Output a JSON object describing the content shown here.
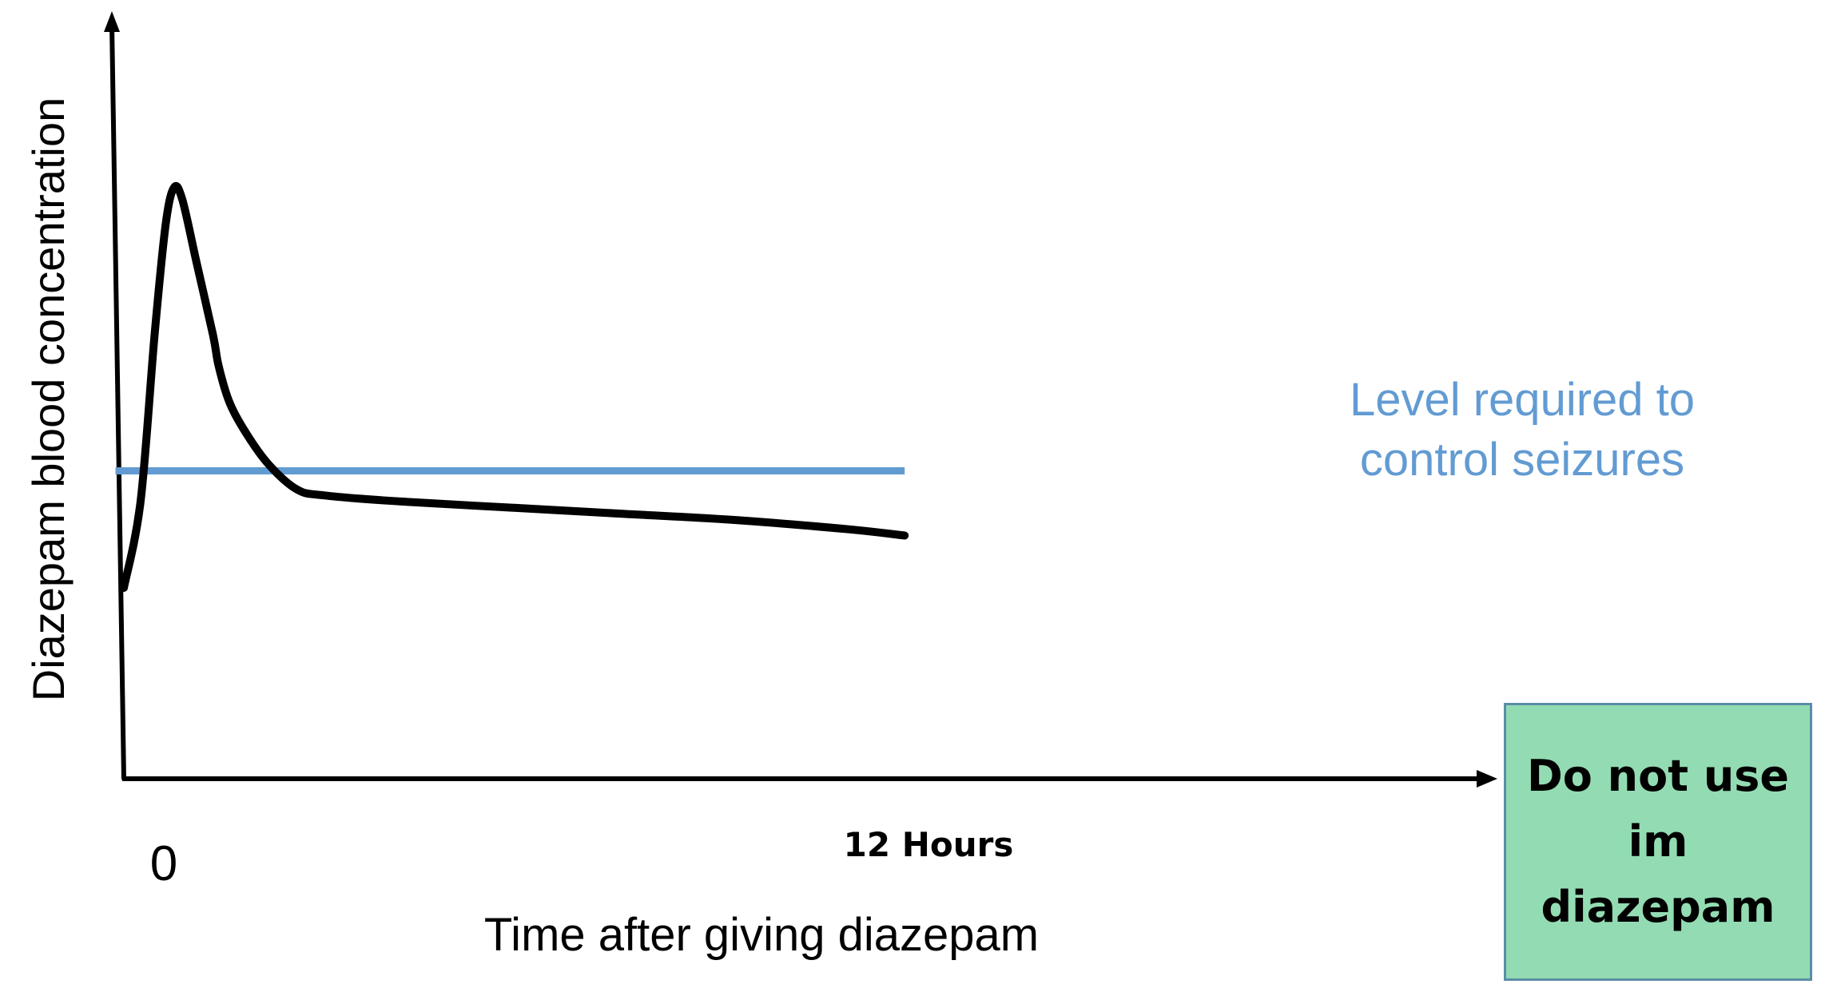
{
  "chart_data": {
    "type": "line",
    "ylabel": "Diazepam blood concentration",
    "xlabel": "Time after giving diazepam",
    "x_ticks": [
      {
        "value": 0,
        "label": "0"
      },
      {
        "value": 12,
        "label": "12 Hours"
      }
    ],
    "xlim": [
      0,
      20
    ],
    "ylim": [
      0,
      100
    ],
    "series": [
      {
        "color": "#000000",
        "points": [
          [
            0.0,
            31
          ],
          [
            0.3,
            45
          ],
          [
            0.55,
            72
          ],
          [
            0.75,
            90
          ],
          [
            0.9,
            96
          ],
          [
            1.05,
            94
          ],
          [
            1.3,
            84
          ],
          [
            1.6,
            72
          ],
          [
            1.7,
            67
          ],
          [
            1.9,
            61
          ],
          [
            2.2,
            56
          ],
          [
            2.6,
            51
          ],
          [
            3.1,
            47
          ],
          [
            3.6,
            46
          ],
          [
            5.0,
            45
          ],
          [
            7.0,
            44
          ],
          [
            9.0,
            43
          ],
          [
            11.0,
            42
          ],
          [
            13.0,
            40.5
          ],
          [
            14.0,
            39.5
          ]
        ]
      }
    ],
    "reference_line": {
      "y": 50,
      "x_range": [
        -0.15,
        14
      ],
      "color": "#629bd2",
      "label_lines": [
        "Level required to",
        "control seizures"
      ]
    }
  },
  "note": {
    "lines": [
      "Do not use",
      "im",
      "diazepam"
    ],
    "background": "#93dcb3",
    "border": "#5a8ea6"
  }
}
